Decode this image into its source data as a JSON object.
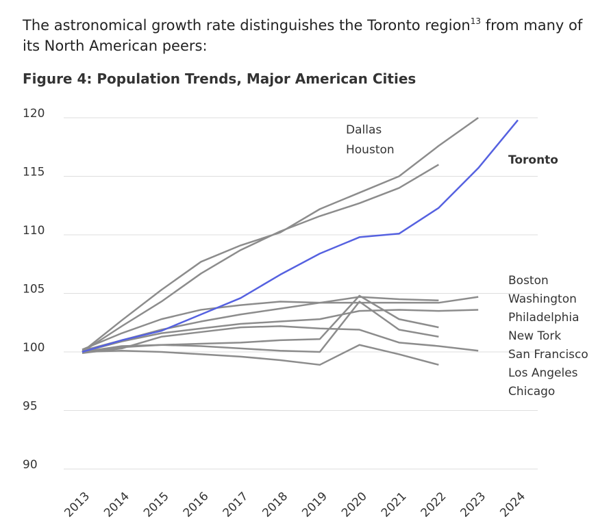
{
  "intro": {
    "text_before": "The astronomical growth rate distinguishes the Toronto region",
    "footnote": "13",
    "text_after": " from many of its North American peers:"
  },
  "chart_data": {
    "type": "line",
    "title": "Figure 4: Population Trends, Major American Cities",
    "x": [
      2013,
      2014,
      2015,
      2016,
      2017,
      2018,
      2019,
      2020,
      2021,
      2022,
      2023,
      2024
    ],
    "xlim": [
      2013,
      2024
    ],
    "xticks": [
      2013,
      2014,
      2015,
      2016,
      2017,
      2018,
      2019,
      2020,
      2021,
      2022,
      2023,
      2024
    ],
    "ylim": [
      90,
      120
    ],
    "yticks": [
      90,
      95,
      100,
      105,
      110,
      115,
      120
    ],
    "grid": true,
    "series": [
      {
        "name": "Dallas",
        "color": "#8c8c8c",
        "values": [
          100,
          102.7,
          105.3,
          107.7,
          109.1,
          110.2,
          112.2,
          113.6,
          115.0,
          117.6,
          120,
          null
        ]
      },
      {
        "name": "Houston",
        "color": "#8c8c8c",
        "values": [
          100,
          102.2,
          104.3,
          106.7,
          108.7,
          110.3,
          111.6,
          112.7,
          114.0,
          116.0,
          null,
          null
        ]
      },
      {
        "name": "Boston",
        "color": "#8c8c8c",
        "values": [
          100.2,
          101.6,
          102.8,
          103.6,
          104.0,
          104.3,
          104.2,
          104.2,
          104.2,
          104.2,
          104.7,
          null
        ]
      },
      {
        "name": "Washington",
        "color": "#8c8c8c",
        "values": [
          100.1,
          101.0,
          101.9,
          102.6,
          103.2,
          103.7,
          104.2,
          104.7,
          104.5,
          104.4,
          null,
          null
        ]
      },
      {
        "name": "Philadelphia",
        "color": "#8c8c8c",
        "values": [
          100.0,
          100.9,
          101.6,
          102.0,
          102.4,
          102.6,
          102.8,
          103.5,
          103.6,
          103.5,
          103.6,
          null
        ]
      },
      {
        "name": "New Tork",
        "color": "#8c8c8c",
        "values": [
          100.0,
          100.4,
          100.6,
          100.7,
          100.8,
          101.0,
          101.1,
          104.8,
          102.8,
          102.1,
          null,
          null
        ]
      },
      {
        "name": "San Francisco",
        "color": "#8c8c8c",
        "values": [
          99.9,
          100.3,
          101.3,
          101.7,
          102.1,
          102.2,
          102.0,
          101.9,
          100.8,
          100.5,
          100.1,
          null
        ]
      },
      {
        "name": "Los Angeles",
        "color": "#8c8c8c",
        "values": [
          100.0,
          100.5,
          100.6,
          100.5,
          100.3,
          100.1,
          100.0,
          104.3,
          101.9,
          101.3,
          null,
          null
        ]
      },
      {
        "name": "Chicago",
        "color": "#8c8c8c",
        "values": [
          100.0,
          100.1,
          100.0,
          99.8,
          99.6,
          99.3,
          98.9,
          100.6,
          99.8,
          98.9,
          null,
          null
        ]
      },
      {
        "name": "Toronto",
        "color": "#5561e0",
        "values": [
          100,
          101.0,
          101.8,
          103.2,
          104.6,
          106.6,
          108.4,
          109.8,
          110.1,
          112.3,
          115.7,
          119.8
        ]
      }
    ]
  }
}
